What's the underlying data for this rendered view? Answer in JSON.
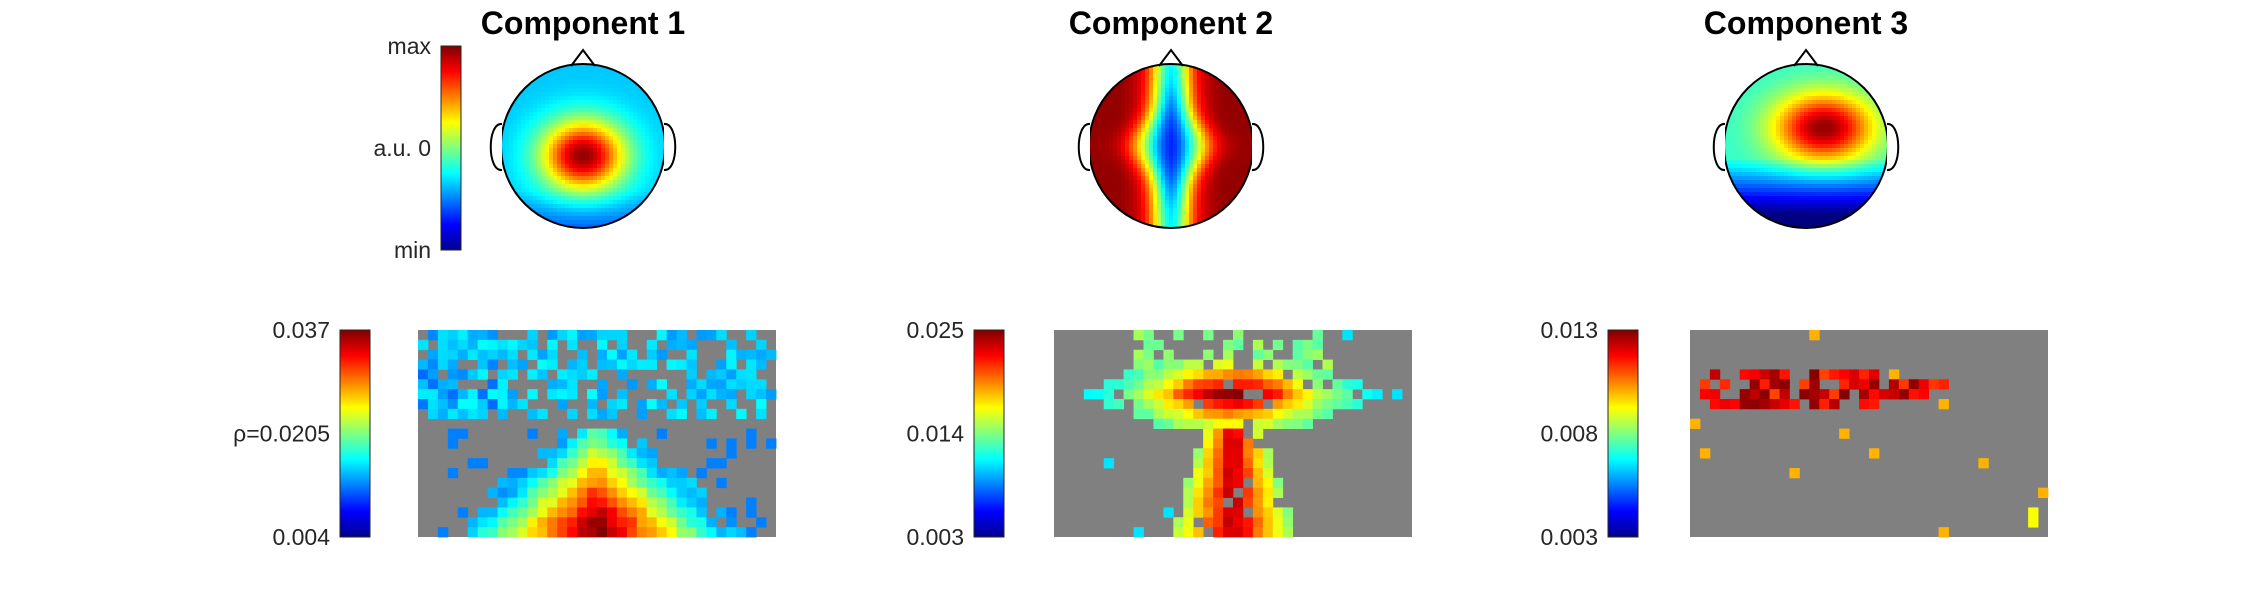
{
  "chart_data": [
    {
      "type": "heatmap",
      "title": "Component 1",
      "topomap": {
        "colorbar": {
          "top_label": "max",
          "middle_label": "a.u. 0",
          "bottom_label": "min"
        },
        "hotspots": [
          {
            "position": "center",
            "sign": "positive"
          }
        ]
      },
      "matrix": {
        "colorbar": {
          "top_label": "0.037",
          "middle_label": "ρ=0.0205",
          "bottom_label": "0.004"
        },
        "range": [
          0.004,
          0.037
        ],
        "pattern": "triangle"
      }
    },
    {
      "type": "heatmap",
      "title": "Component 2",
      "topomap": {
        "hotspots": [
          {
            "position": "lateral",
            "sign": "positive"
          },
          {
            "position": "midline",
            "sign": "negative"
          }
        ]
      },
      "matrix": {
        "colorbar": {
          "top_label": "0.025",
          "middle_label": "0.014",
          "bottom_label": "0.003"
        },
        "range": [
          0.003,
          0.025
        ],
        "pattern": "hourglass"
      }
    },
    {
      "type": "heatmap",
      "title": "Component 3",
      "topomap": {
        "hotspots": [
          {
            "position": "right-frontal",
            "sign": "positive"
          },
          {
            "position": "posterior",
            "sign": "negative"
          }
        ]
      },
      "matrix": {
        "colorbar": {
          "top_label": "0.013",
          "middle_label": "0.008",
          "bottom_label": "0.003"
        },
        "range": [
          0.003,
          0.013
        ],
        "pattern": "band"
      }
    }
  ],
  "colors": {
    "colormap": "jet",
    "masked": "#808080"
  }
}
